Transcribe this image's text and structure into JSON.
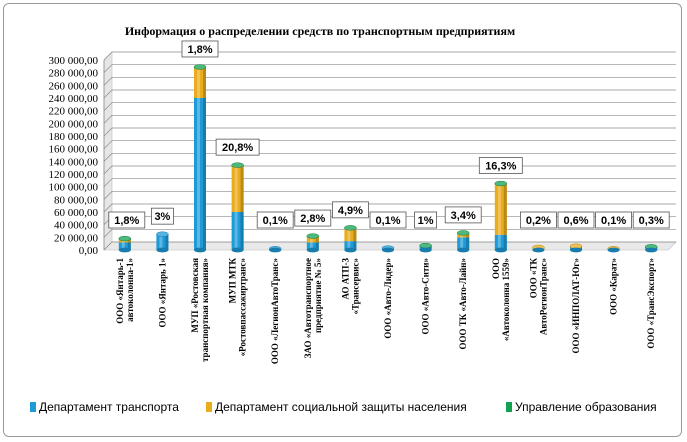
{
  "chart_data": {
    "type": "bar",
    "title": "Информация о распределении средств по транспортным предприятиям",
    "ylim": [
      0,
      300000
    ],
    "yticks": [
      "300 000,00",
      "280 000,00",
      "260 000,00",
      "240 000,00",
      "220 000,00",
      "200 000,00",
      "180 000,00",
      "160 000,00",
      "140 000,00",
      "120 000,00",
      "100 000,00",
      "80 000,00",
      "60 000,00",
      "40 000,00",
      "20 000,00",
      "0,00"
    ],
    "stacked": true,
    "grid": true,
    "legend_position": "bottom",
    "categories": [
      [
        "ООО «Янтарь-1",
        "автоколонна-1»"
      ],
      [
        "ООО «Янтарь 1»"
      ],
      [
        "МУП «Ростовская",
        "транспортная компания»"
      ],
      [
        "МУП МТК",
        "«Ростовпассажиртранс»"
      ],
      [
        "ООО «ЛегионАвтоТранс»"
      ],
      [
        "ЗАО «Автотранспортное",
        "предприятие № 5»"
      ],
      [
        "АО АТП-3",
        "«Трансервис»"
      ],
      [
        "ООО «Авто-Лидер»"
      ],
      [
        "ООО «Авто-Сити»"
      ],
      [
        "ООО ТК «Авто-Лайн»"
      ],
      [
        "ООО",
        "«Автоколонна 1559»"
      ],
      [
        "ООО «ТК",
        "АвтоРегионТранс»"
      ],
      [
        "ООО «ИНПОЛАТ-Юг»"
      ],
      [
        "ООО «Карат»"
      ],
      [
        "ООО «ТрансЭкспорт»"
      ]
    ],
    "series": [
      {
        "name": "Департамент транспорта",
        "color": "#1E9BD7",
        "values": [
          12000,
          25000,
          240000,
          60000,
          2000,
          12000,
          14000,
          3000,
          6000,
          20000,
          24000,
          1000,
          5000,
          1000,
          4000
        ]
      },
      {
        "name": "Департамент социальной защиты населения",
        "color": "#E8AC1C",
        "values": [
          5000,
          0,
          47000,
          73000,
          0,
          9000,
          20000,
          0,
          0,
          6000,
          80000,
          3000,
          1000,
          1000,
          0
        ]
      },
      {
        "name": "Управление образования",
        "color": "#14A050",
        "values": [
          1000,
          0,
          2000,
          1000,
          0,
          1000,
          1000,
          0,
          1000,
          1000,
          1000,
          0,
          0,
          0,
          1000
        ]
      }
    ],
    "data_labels": [
      "1,8%",
      "3%",
      "1,8%",
      "20,8%",
      "0,1%",
      "2,8%",
      "4,9%",
      "0,1%",
      "1%",
      "3,4%",
      "16,3%",
      "0,2%",
      "0,6%",
      "0,1%",
      "0,3%"
    ]
  },
  "colors": {
    "frame_border": "#9a9a9a",
    "grid": "#8c8c8c",
    "wall": "#bdbdbd"
  }
}
